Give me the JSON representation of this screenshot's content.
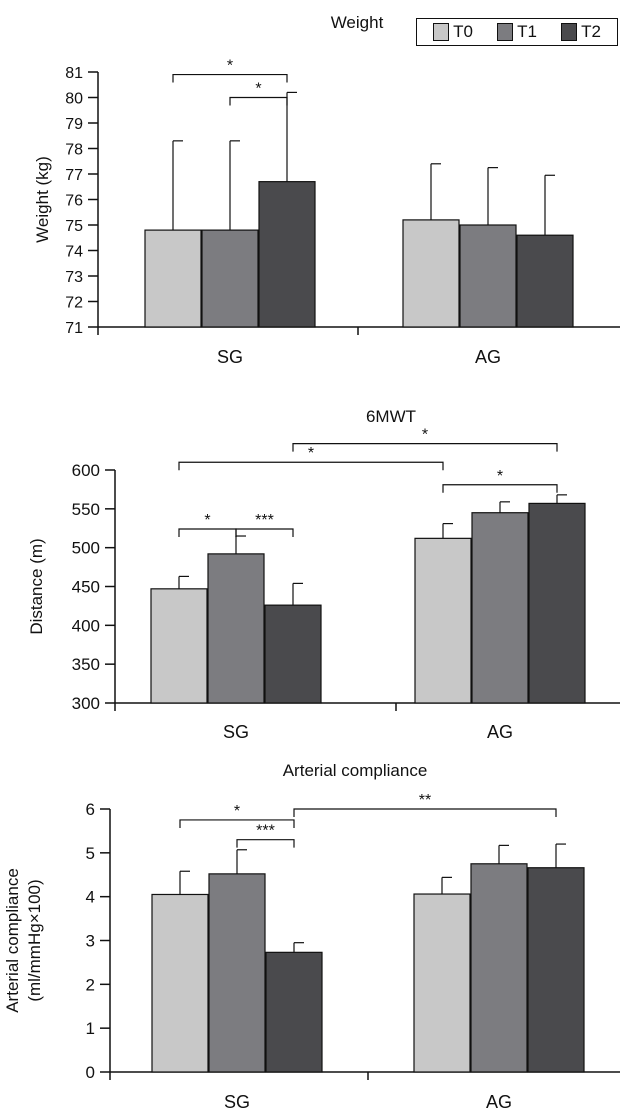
{
  "colors": {
    "T0": "#c8c8c8",
    "T1": "#7c7c80",
    "T2": "#4a4a4d",
    "axis": "#111111"
  },
  "legend": [
    {
      "label": "T0",
      "color": "#c8c8c8"
    },
    {
      "label": "T1",
      "color": "#7c7c80"
    },
    {
      "label": "T2",
      "color": "#4a4a4d"
    }
  ],
  "chart_data": [
    {
      "type": "bar",
      "title": "Weight",
      "ylabel": "Weight (kg)",
      "ylabel_lines": [
        "Weight (kg)"
      ],
      "xlabel": "",
      "categories": [
        "SG",
        "AG"
      ],
      "ylim": [
        71,
        81
      ],
      "yticks": [
        71,
        72,
        73,
        74,
        75,
        76,
        77,
        78,
        79,
        80,
        81
      ],
      "series": [
        {
          "name": "T0",
          "values": [
            74.8,
            75.2
          ],
          "error": [
            3.5,
            2.2
          ]
        },
        {
          "name": "T1",
          "values": [
            74.8,
            75.0
          ],
          "error": [
            3.5,
            2.25
          ]
        },
        {
          "name": "T2",
          "values": [
            76.7,
            74.6
          ],
          "error": [
            3.5,
            2.35
          ]
        }
      ],
      "significance": [
        {
          "from": [
            0,
            0
          ],
          "to": [
            0,
            2
          ],
          "label": "*",
          "level": 80.9
        },
        {
          "from": [
            0,
            1
          ],
          "to": [
            0,
            2
          ],
          "label": "*",
          "level": 80.0
        }
      ]
    },
    {
      "type": "bar",
      "title": "6MWT",
      "ylabel": "Distance (m)",
      "ylabel_lines": [
        "Distance (m)"
      ],
      "xlabel": "",
      "categories": [
        "SG",
        "AG"
      ],
      "ylim": [
        300,
        600
      ],
      "yticks": [
        300,
        350,
        400,
        450,
        500,
        550,
        600
      ],
      "series": [
        {
          "name": "T0",
          "values": [
            447,
            512
          ],
          "error": [
            16,
            19
          ]
        },
        {
          "name": "T1",
          "values": [
            492,
            545
          ],
          "error": [
            23,
            14
          ]
        },
        {
          "name": "T2",
          "values": [
            426,
            557
          ],
          "error": [
            28,
            11
          ]
        }
      ],
      "significance": [
        {
          "from": [
            0,
            2
          ],
          "to": [
            1,
            2
          ],
          "label": "*",
          "level": 634
        },
        {
          "from": [
            0,
            0
          ],
          "to": [
            1,
            0
          ],
          "label": "*",
          "level": 610
        },
        {
          "from": [
            1,
            0
          ],
          "to": [
            1,
            2
          ],
          "label": "*",
          "level": 581
        },
        {
          "from": [
            0,
            0
          ],
          "to": [
            0,
            1
          ],
          "label": "*",
          "level": 524
        },
        {
          "from": [
            0,
            1
          ],
          "to": [
            0,
            2
          ],
          "label": "***",
          "level": 524
        }
      ]
    },
    {
      "type": "bar",
      "title": "Arterial compliance",
      "ylabel": "Arterial compliance (ml/mmHg×100)",
      "ylabel_lines": [
        "Arterial compliance",
        "(ml/mmHg×100)"
      ],
      "xlabel": "",
      "categories": [
        "SG",
        "AG"
      ],
      "ylim": [
        0,
        6
      ],
      "yticks": [
        0,
        1,
        2,
        3,
        4,
        5,
        6
      ],
      "series": [
        {
          "name": "T0",
          "values": [
            4.05,
            4.06
          ],
          "error": [
            0.53,
            0.38
          ]
        },
        {
          "name": "T1",
          "values": [
            4.52,
            4.75
          ],
          "error": [
            0.55,
            0.42
          ]
        },
        {
          "name": "T2",
          "values": [
            2.73,
            4.66
          ],
          "error": [
            0.22,
            0.54
          ]
        }
      ],
      "significance": [
        {
          "from": [
            0,
            2
          ],
          "to": [
            1,
            2
          ],
          "label": "**",
          "level": 6.0
        },
        {
          "from": [
            0,
            0
          ],
          "to": [
            0,
            2
          ],
          "label": "*",
          "level": 5.75
        },
        {
          "from": [
            0,
            1
          ],
          "to": [
            0,
            2
          ],
          "label": "***",
          "level": 5.3
        }
      ]
    }
  ]
}
